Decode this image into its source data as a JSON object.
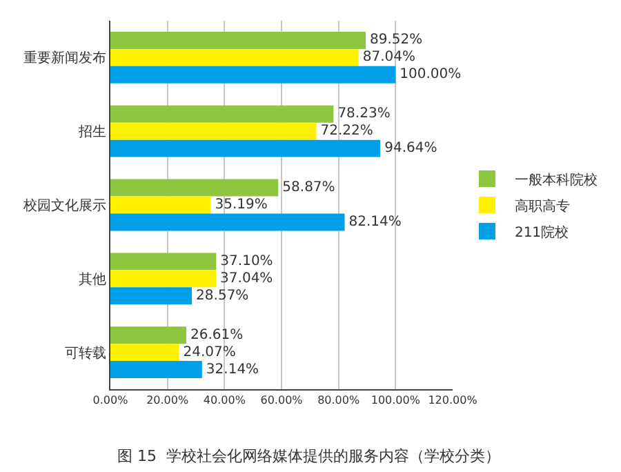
{
  "chart_data": {
    "type": "bar",
    "orientation": "horizontal",
    "categories": [
      "重要新闻发布",
      "招生",
      "校园文化展示",
      "其他",
      "可转载"
    ],
    "series": [
      {
        "name": "一般本科院校",
        "color": "#8dc63f",
        "values": [
          89.52,
          78.23,
          58.87,
          37.1,
          26.61
        ],
        "value_labels": [
          "89.52%",
          "78.23%",
          "58.87%",
          "37.10%",
          "26.61%"
        ]
      },
      {
        "name": "高职高专",
        "color": "#fff200",
        "values": [
          87.04,
          72.22,
          35.19,
          37.04,
          24.07
        ],
        "value_labels": [
          "87.04%",
          "72.22%",
          "35.19%",
          "37.04%",
          "24.07%"
        ]
      },
      {
        "name": "211院校",
        "color": "#00a0e9",
        "values": [
          100.0,
          94.64,
          82.14,
          28.57,
          32.14
        ],
        "value_labels": [
          "100.00%",
          "94.64%",
          "82.14%",
          "28.57%",
          "32.14%"
        ]
      }
    ],
    "xlim": [
      0,
      120
    ],
    "xticks": [
      {
        "value": 0,
        "label": "0.00%"
      },
      {
        "value": 20,
        "label": "20.00%"
      },
      {
        "value": 40,
        "label": "40.00%"
      },
      {
        "value": 60,
        "label": "60.00%"
      },
      {
        "value": 80,
        "label": "80.00%"
      },
      {
        "value": 100,
        "label": "100.00%"
      },
      {
        "value": 120,
        "label": "120.00%"
      }
    ],
    "grid": "x",
    "legend": "right",
    "annotations": [
      "图 15  学校社会化网络媒体提供的服务内容（学校分类）"
    ]
  }
}
